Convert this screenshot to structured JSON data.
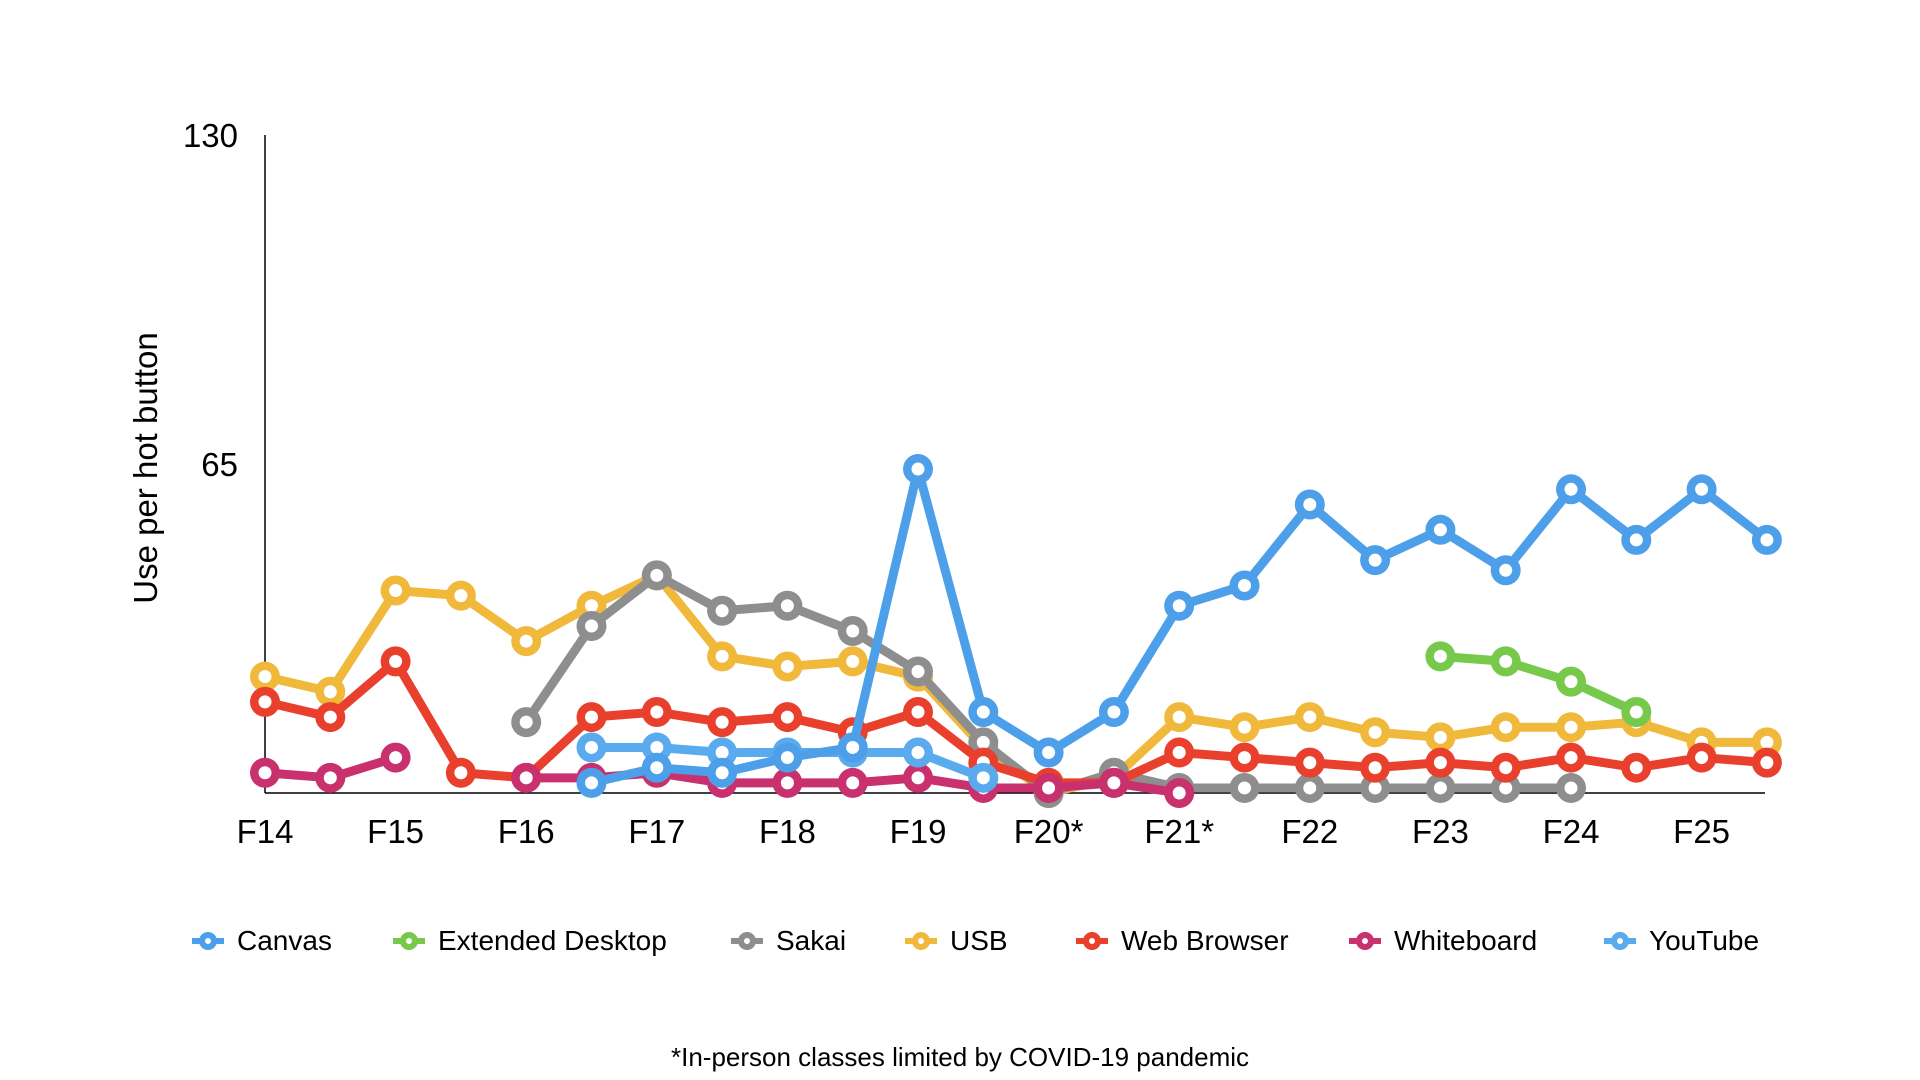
{
  "colors": {
    "canvas": "#4c9fe8",
    "extended_desktop": "#76c94a",
    "sakai": "#8e8e8e",
    "usb": "#f0b93b",
    "web_browser": "#e8402d",
    "whiteboard": "#c8306e",
    "youtube": "#5aabed"
  },
  "footnote": "*In-person classes limited by COVID-19 pandemic",
  "chart_data": {
    "type": "line",
    "ylabel": "Use per hot button",
    "xlabel": "",
    "ylim": [
      0,
      130
    ],
    "yticks": [
      "130",
      "65"
    ],
    "x_tick_labels": [
      "F14",
      "F15",
      "F16",
      "F17",
      "F18",
      "F19",
      "F20*",
      "F21*",
      "F22",
      "F23",
      "F24",
      "F25"
    ],
    "x_positions": [
      "F14",
      "S15",
      "F15",
      "S16",
      "F16",
      "S17",
      "F17",
      "S18",
      "F18",
      "S19",
      "F19",
      "S20",
      "F20",
      "S21",
      "F21",
      "S22",
      "F22",
      "S23",
      "F23",
      "S24",
      "F24",
      "S25",
      "F25",
      "S26"
    ],
    "legend_position": "bottom",
    "grid": false,
    "series": [
      {
        "name": "USB",
        "color_key": "usb",
        "values": [
          23,
          20,
          40,
          39,
          30,
          37,
          43,
          27,
          25,
          26,
          23,
          9,
          0,
          3,
          15,
          13,
          15,
          12,
          11,
          13,
          13,
          14,
          10,
          10
        ]
      },
      {
        "name": "Sakai",
        "color_key": "sakai",
        "values": [
          null,
          null,
          null,
          null,
          14,
          33,
          43,
          36,
          37,
          32,
          24,
          10,
          0,
          4,
          1,
          1,
          1,
          1,
          1,
          1,
          1,
          null,
          null,
          null
        ]
      },
      {
        "name": "Web Browser",
        "color_key": "web_browser",
        "values": [
          18,
          15,
          26,
          4,
          3,
          15,
          16,
          14,
          15,
          12,
          16,
          6,
          2,
          2,
          8,
          7,
          6,
          5,
          6,
          5,
          7,
          5,
          7,
          6
        ]
      },
      {
        "name": "Whiteboard",
        "color_key": "whiteboard",
        "values": [
          4,
          3,
          7,
          null,
          3,
          3,
          4,
          2,
          2,
          2,
          3,
          1,
          1,
          2,
          0,
          null,
          null,
          null,
          null,
          null,
          null,
          null,
          null,
          null
        ]
      },
      {
        "name": "YouTube",
        "color_key": "youtube",
        "values": [
          null,
          null,
          null,
          null,
          null,
          9,
          9,
          8,
          8,
          8,
          8,
          3,
          null,
          null,
          null,
          null,
          null,
          null,
          null,
          null,
          null,
          null,
          null,
          null
        ]
      },
      {
        "name": "Extended Desktop",
        "color_key": "extended_desktop",
        "values": [
          null,
          null,
          null,
          null,
          null,
          null,
          null,
          null,
          null,
          null,
          null,
          null,
          null,
          null,
          null,
          null,
          null,
          null,
          27,
          26,
          22,
          16,
          null,
          null
        ]
      },
      {
        "name": "Canvas",
        "color_key": "canvas",
        "values": [
          null,
          null,
          null,
          null,
          null,
          2,
          5,
          4,
          7,
          9,
          64,
          16,
          8,
          16,
          37,
          41,
          57,
          46,
          52,
          44,
          60,
          50,
          60,
          50
        ]
      }
    ]
  },
  "legend": [
    {
      "label": "Canvas",
      "color_key": "canvas"
    },
    {
      "label": "Extended Desktop",
      "color_key": "extended_desktop"
    },
    {
      "label": "Sakai",
      "color_key": "sakai"
    },
    {
      "label": "USB",
      "color_key": "usb"
    },
    {
      "label": "Web Browser",
      "color_key": "web_browser"
    },
    {
      "label": "Whiteboard",
      "color_key": "whiteboard"
    },
    {
      "label": "YouTube",
      "color_key": "youtube"
    }
  ]
}
